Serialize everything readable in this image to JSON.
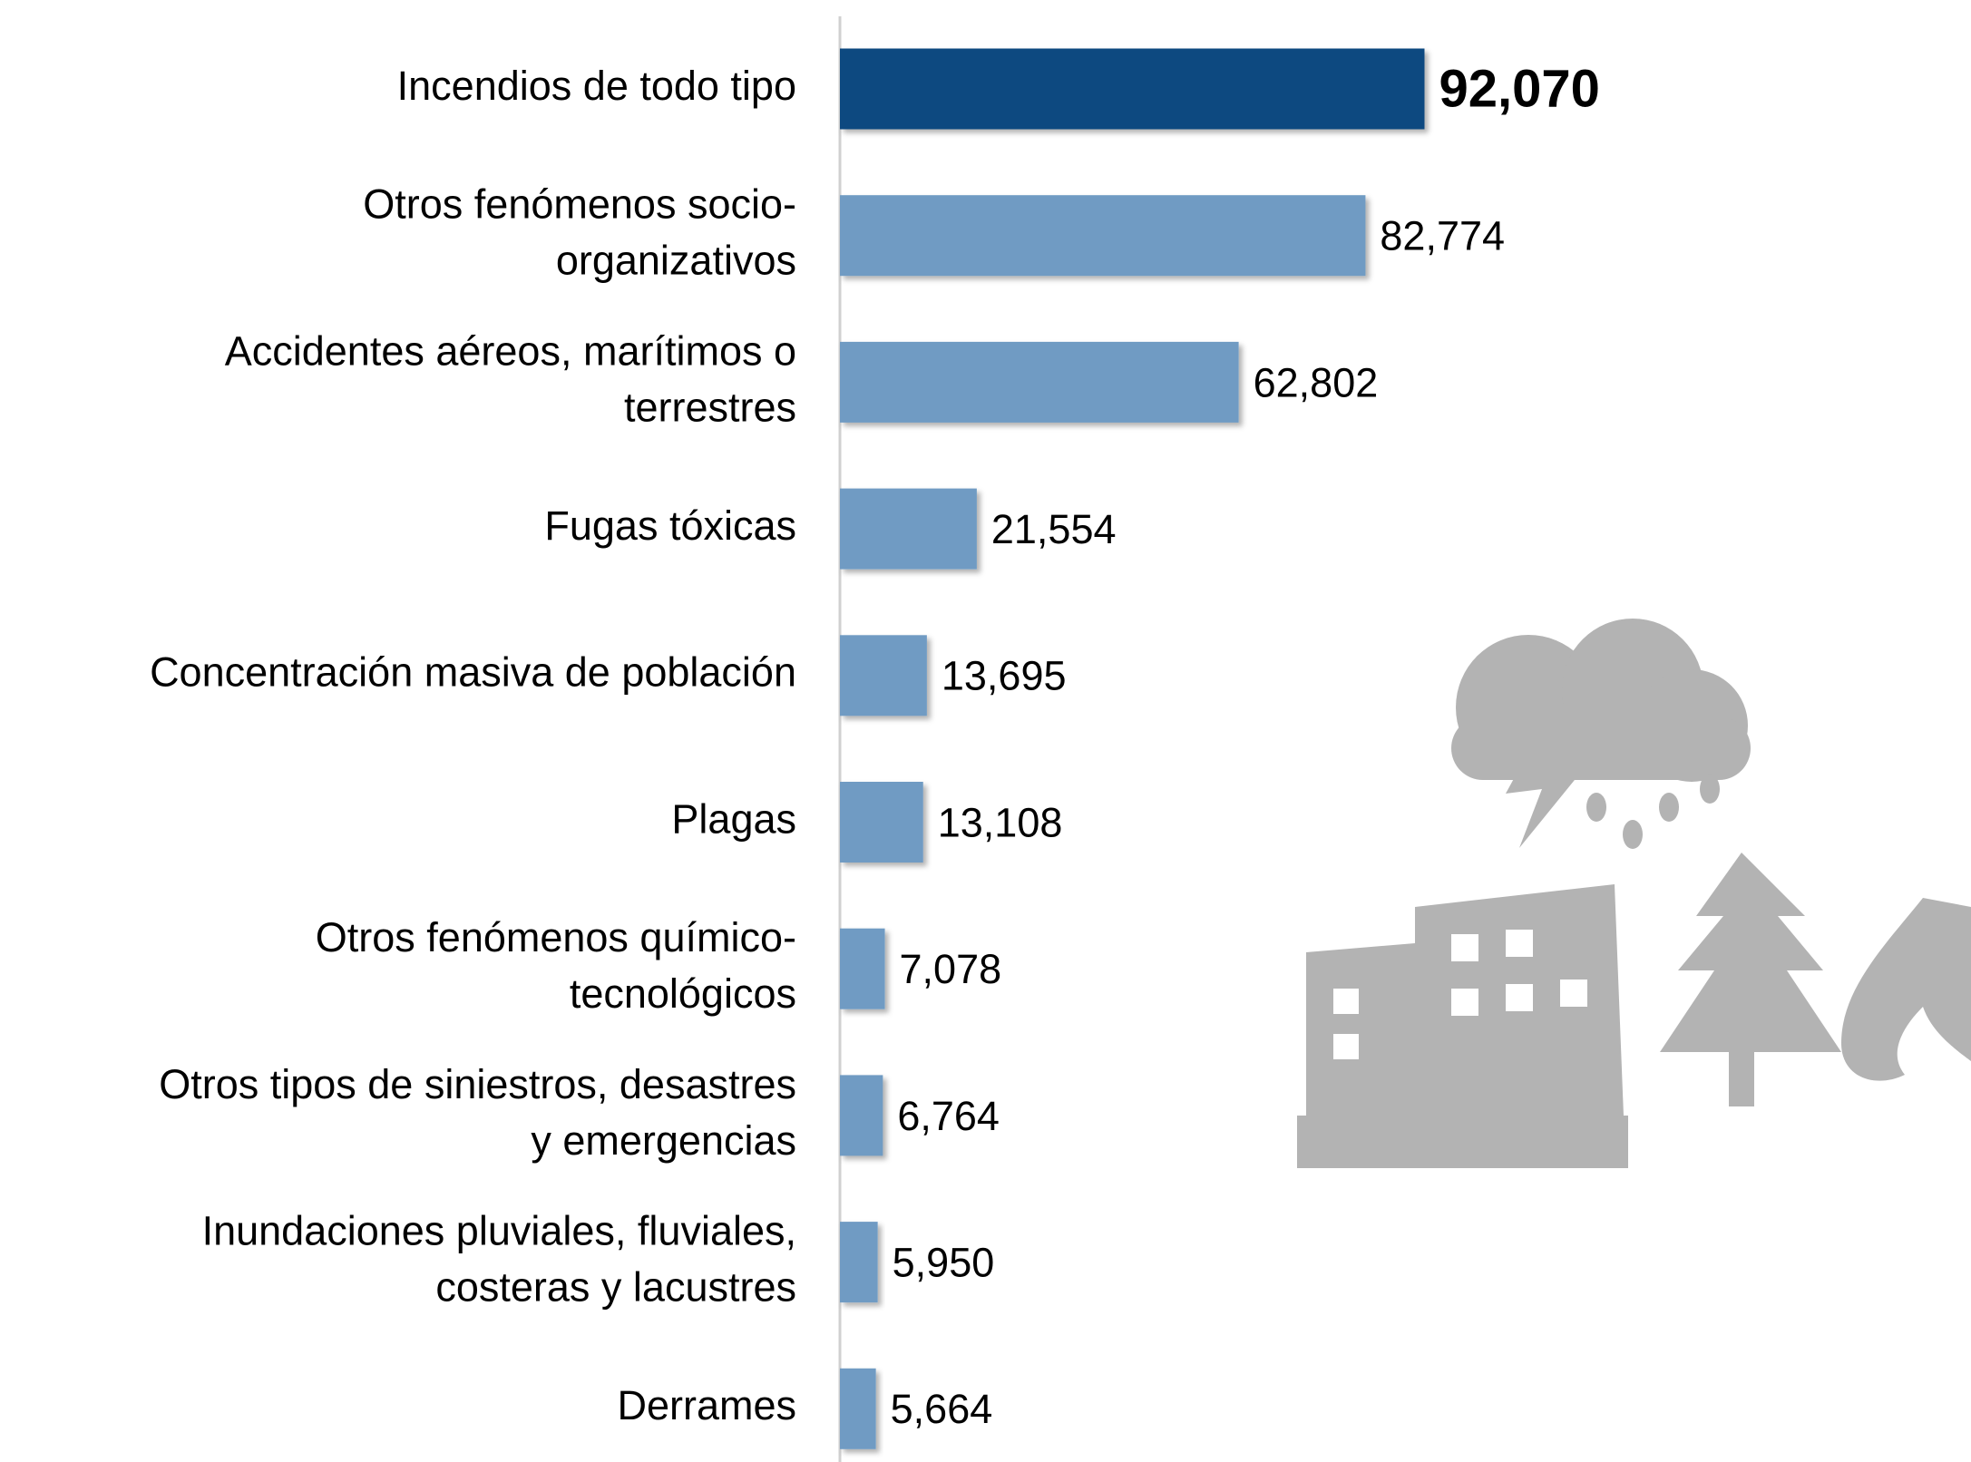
{
  "chart_data": {
    "type": "bar",
    "orientation": "horizontal",
    "categories": [
      "Incendios de todo tipo",
      "Otros fenómenos socio-\norganizativos",
      "Accidentes aéreos, marítimos o\nterrestres",
      "Fugas tóxicas",
      "Concentración masiva de población",
      "Plagas",
      "Otros fenómenos químico-\ntecnológicos",
      "Otros tipos de siniestros, desastres\ny emergencias",
      "Inundaciones pluviales, fluviales,\ncosteras y lacustres",
      "Derrames"
    ],
    "values": [
      92070,
      82774,
      62802,
      21554,
      13695,
      13108,
      7078,
      6764,
      5950,
      5664
    ],
    "value_labels": [
      "92,070",
      "82,774",
      "62,802",
      "21,554",
      "13,695",
      "13,108",
      "7,078",
      "6,764",
      "5,950",
      "5,664"
    ],
    "colors": [
      "#0b4a80",
      "#6f9bc3",
      "#6f9bc3",
      "#6f9bc3",
      "#6f9bc3",
      "#6f9bc3",
      "#6f9bc3",
      "#6f9bc3",
      "#6f9bc3",
      "#6f9bc3"
    ],
    "xlim": [
      0,
      100000
    ]
  }
}
